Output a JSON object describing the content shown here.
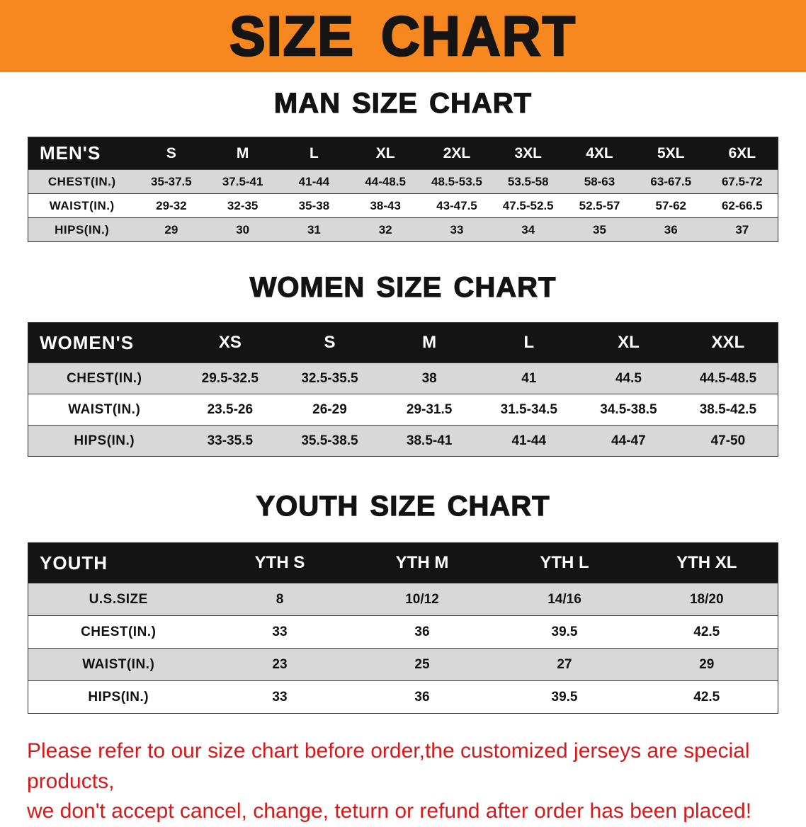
{
  "banner": {
    "title": "SIZE CHART",
    "bg_color": "#f6881f",
    "text_color": "#151515"
  },
  "sections": [
    {
      "id": "men",
      "heading": "MAN SIZE CHART",
      "table": {
        "header": [
          "MEN'S",
          "S",
          "M",
          "L",
          "XL",
          "2XL",
          "3XL",
          "4XL",
          "5XL",
          "6XL"
        ],
        "rows": [
          [
            "CHEST(IN.)",
            "35-37.5",
            "37.5-41",
            "41-44",
            "44-48.5",
            "48.5-53.5",
            "53.5-58",
            "58-63",
            "63-67.5",
            "67.5-72"
          ],
          [
            "WAIST(IN.)",
            "29-32",
            "32-35",
            "35-38",
            "38-43",
            "43-47.5",
            "47.5-52.5",
            "52.5-57",
            "57-62",
            "62-66.5"
          ],
          [
            "HIPS(IN.)",
            "29",
            "30",
            "31",
            "32",
            "33",
            "34",
            "35",
            "36",
            "37"
          ]
        ]
      }
    },
    {
      "id": "women",
      "heading": "WOMEN SIZE CHART",
      "table": {
        "header": [
          "WOMEN'S",
          "XS",
          "S",
          "M",
          "L",
          "XL",
          "XXL"
        ],
        "rows": [
          [
            "CHEST(IN.)",
            "29.5-32.5",
            "32.5-35.5",
            "38",
            "41",
            "44.5",
            "44.5-48.5"
          ],
          [
            "WAIST(IN.)",
            "23.5-26",
            "26-29",
            "29-31.5",
            "31.5-34.5",
            "34.5-38.5",
            "38.5-42.5"
          ],
          [
            "HIPS(IN.)",
            "33-35.5",
            "35.5-38.5",
            "38.5-41",
            "41-44",
            "44-47",
            "47-50"
          ]
        ]
      }
    },
    {
      "id": "youth",
      "heading": "YOUTH SIZE CHART",
      "table": {
        "header": [
          "YOUTH",
          "YTH S",
          "YTH M",
          "YTH L",
          "YTH XL"
        ],
        "rows": [
          [
            "U.S.SIZE",
            "8",
            "10/12",
            "14/16",
            "18/20"
          ],
          [
            "CHEST(IN.)",
            "33",
            "36",
            "39.5",
            "42.5"
          ],
          [
            "WAIST(IN.)",
            "23",
            "25",
            "27",
            "29"
          ],
          [
            "HIPS(IN.)",
            "33",
            "36",
            "39.5",
            "42.5"
          ]
        ]
      }
    }
  ],
  "disclaimer": {
    "line1": "Please refer to our size chart before order,the customized jerseys are special products,",
    "line2": "we don't accept cancel, change, teturn or refund after order has been placed!",
    "color": "#d41a1a"
  }
}
